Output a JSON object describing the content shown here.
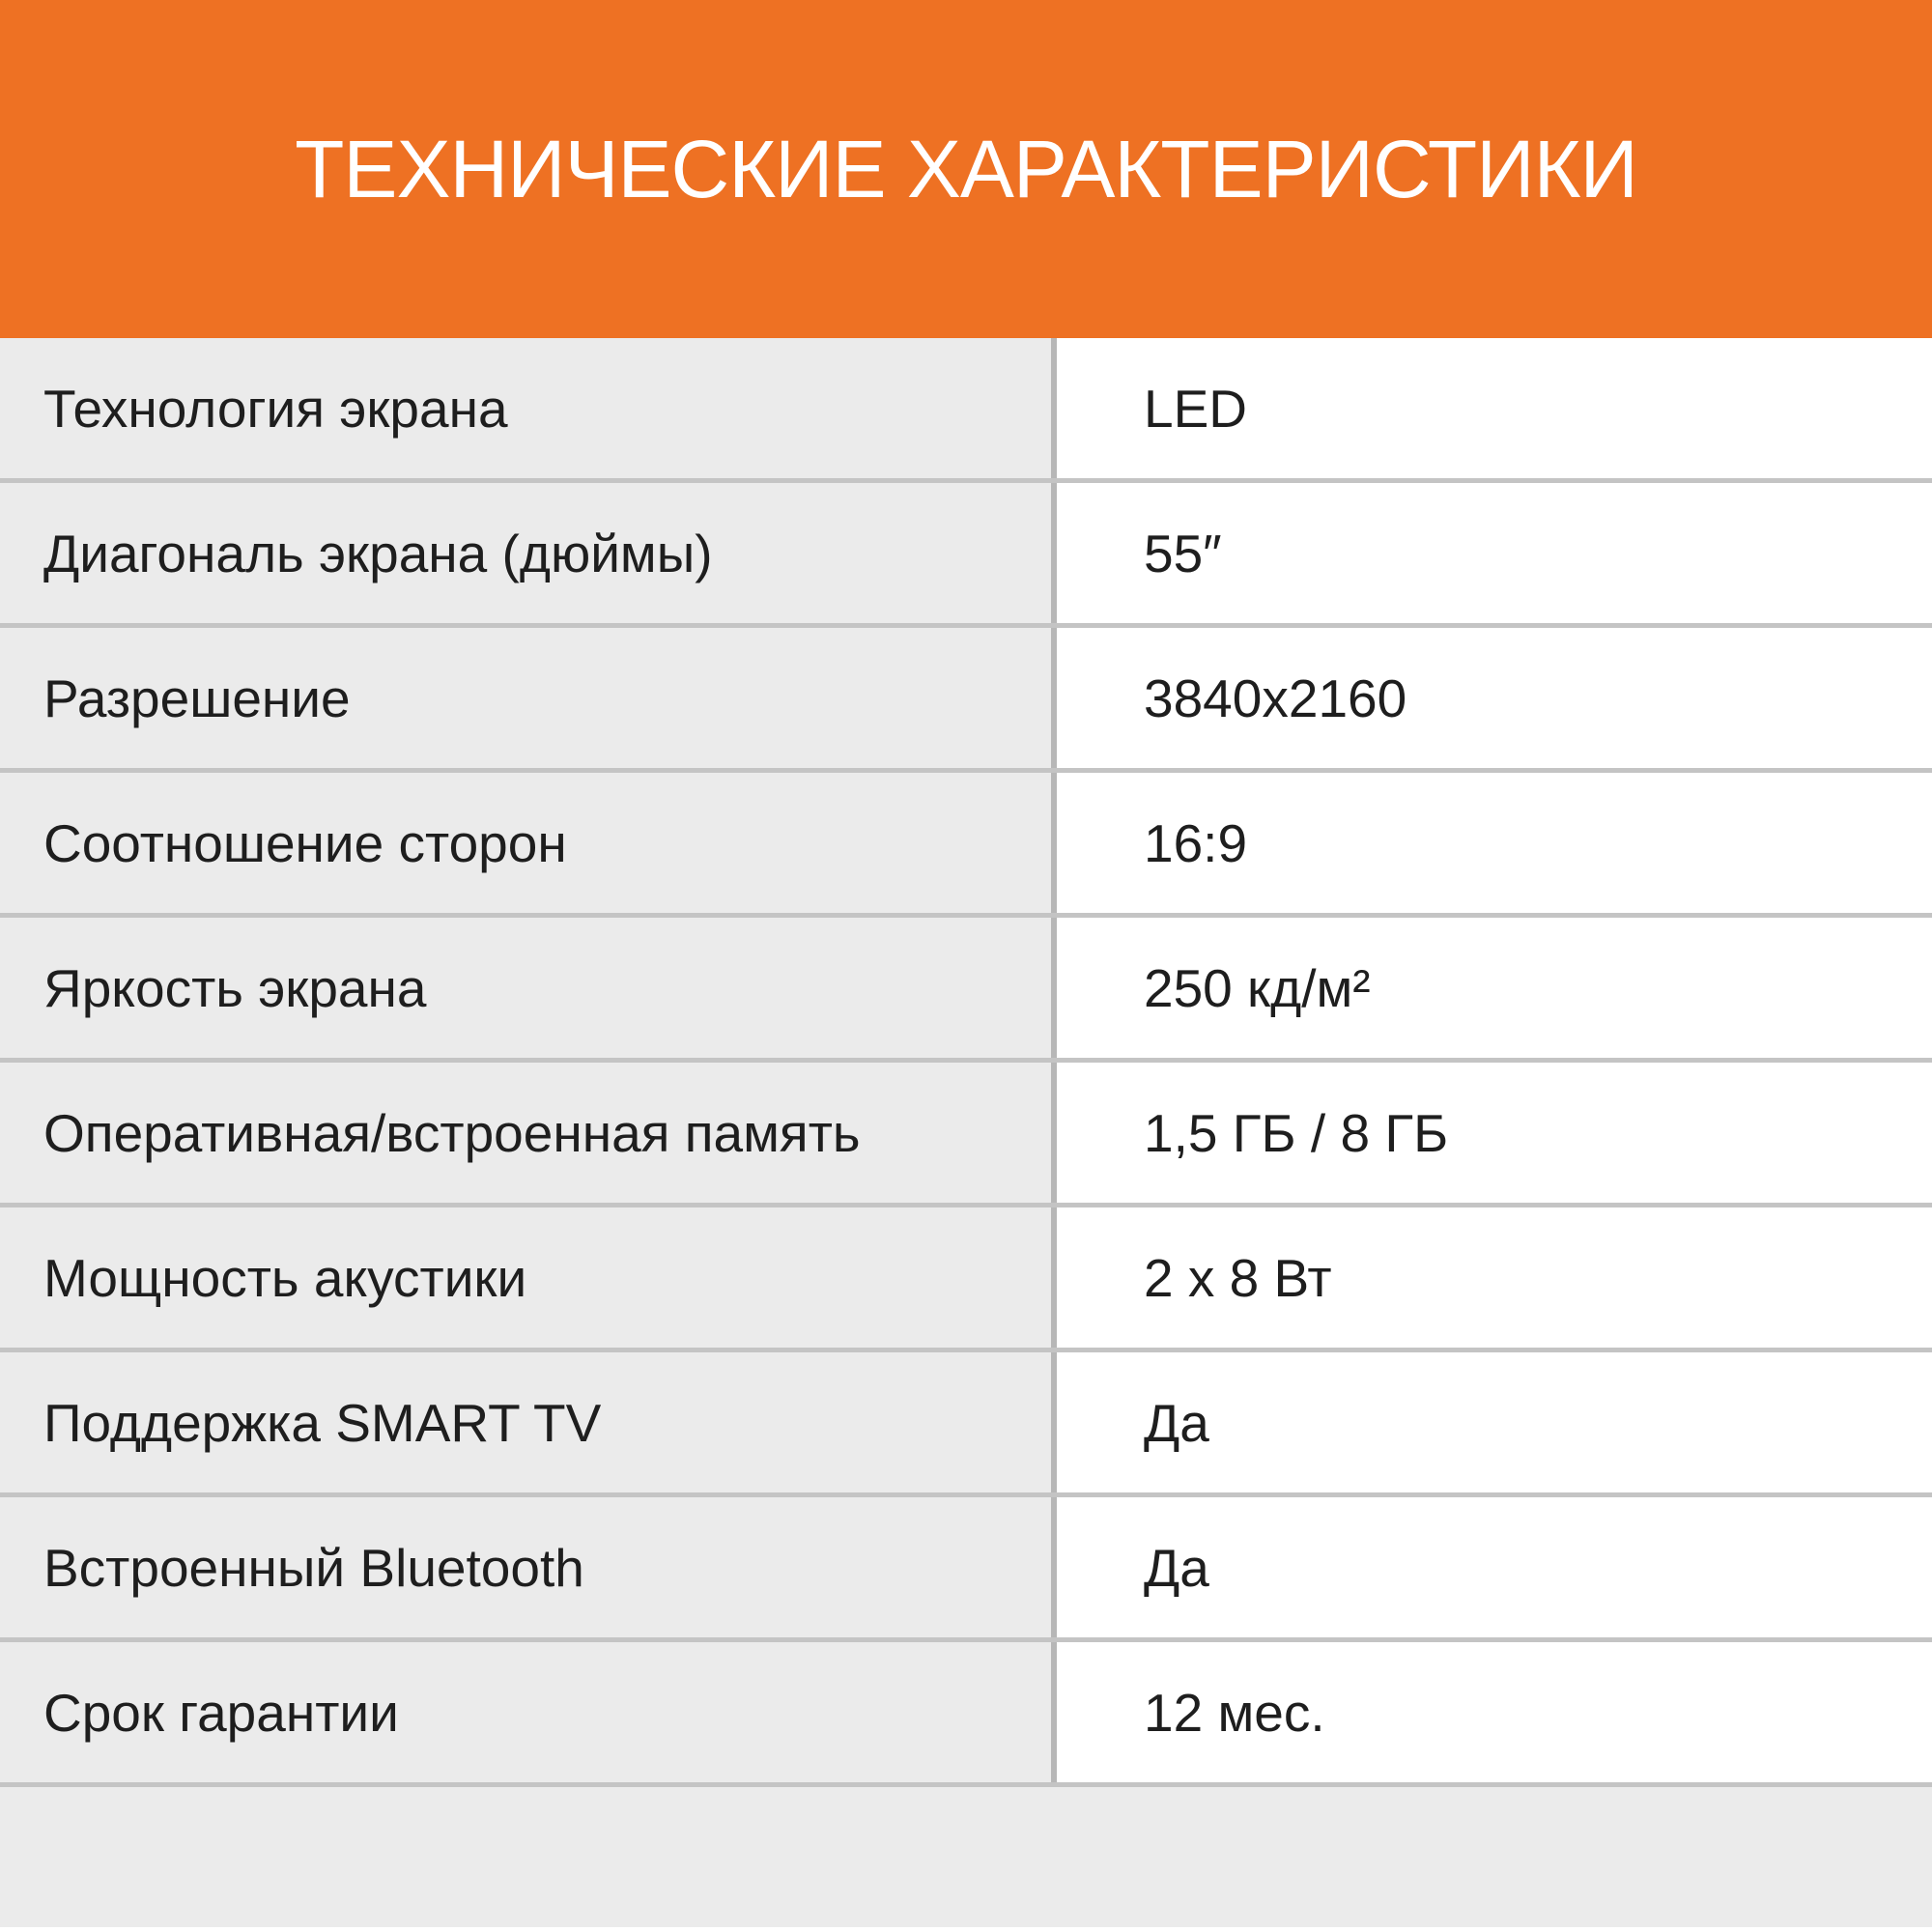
{
  "header": {
    "title": "ТЕХНИЧЕСКИЕ ХАРАКТЕРИСТИКИ"
  },
  "colors": {
    "banner_orange": "#EE7123",
    "title_text": "#FFFFFF",
    "label_column_bg": "#EBEBEB",
    "value_column_bg": "#FFFFFF",
    "row_separator": "#C4C4C4",
    "column_divider": "#B7B7B7",
    "body_text": "#1E1E1E",
    "footer_bg": "#EBEBEB"
  },
  "table": {
    "rows": [
      {
        "label": "Технология экрана",
        "value": "LED"
      },
      {
        "label": "Диагональ экрана (дюймы)",
        "value": "55″"
      },
      {
        "label": "Разрешение",
        "value": "3840x2160"
      },
      {
        "label": "Соотношение сторон",
        "value": "16:9"
      },
      {
        "label": "Яркость экрана",
        "value": "250 кд/м²"
      },
      {
        "label": "Оперативная/встроенная память",
        "value": "1,5 ГБ / 8 ГБ"
      },
      {
        "label": "Мощность акустики",
        "value": "2 x 8 Вт"
      },
      {
        "label": "Поддержка SMART TV",
        "value": "Да"
      },
      {
        "label": "Встроенный Bluetooth",
        "value": "Да"
      },
      {
        "label": "Срок гарантии",
        "value": "12 мес."
      }
    ]
  }
}
